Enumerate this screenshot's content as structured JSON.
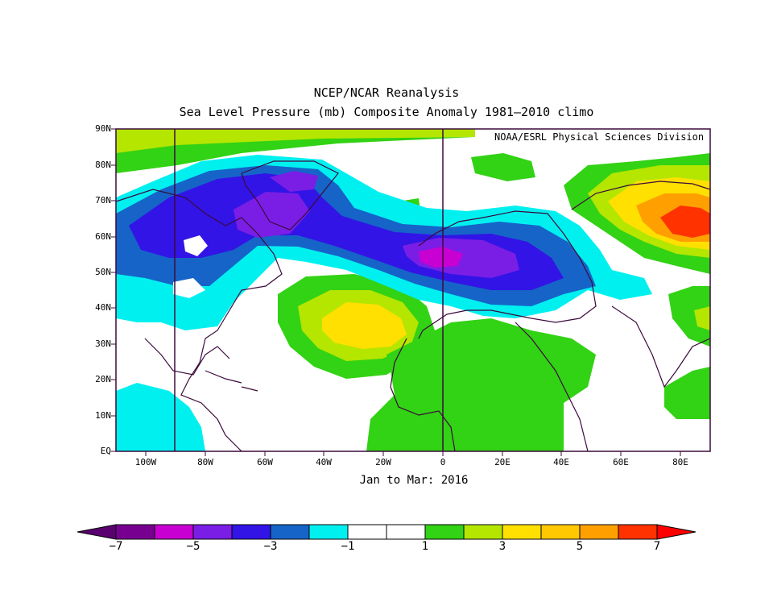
{
  "title": "NCEP/NCAR Reanalysis",
  "subtitle": "Sea Level Pressure (mb) Composite Anomaly 1981–2010 climo",
  "credit": "NOAA/ESRL Physical Sciences Division",
  "period": "Jan to Mar: 2016",
  "lat_labels": [
    "90N",
    "80N",
    "70N",
    "60N",
    "50N",
    "40N",
    "30N",
    "20N",
    "10N",
    "EQ"
  ],
  "lon_labels": [
    "100W",
    "80W",
    "60W",
    "40W",
    "20W",
    "0",
    "20E",
    "40E",
    "60E",
    "80E"
  ],
  "colorbar": {
    "labels": [
      "−7",
      "−5",
      "−3",
      "−1",
      "1",
      "3",
      "5",
      "7"
    ],
    "colors": [
      "#5a0070",
      "#780090",
      "#c800d2",
      "#7a1ee6",
      "#3214e6",
      "#1664c8",
      "#00f0f0",
      "#ffffff",
      "#ffffff",
      "#32d214",
      "#b4e600",
      "#ffe000",
      "#ffc800",
      "#ffa000",
      "#ff3200",
      "#ff0000"
    ]
  },
  "legend_colors": {
    "cyan": "#00f0f0",
    "blue": "#1664c8",
    "indigo": "#3214e6",
    "violet": "#7a1ee6",
    "magenta": "#c800d2",
    "green": "#32d214",
    "yellowgreen": "#b4e600",
    "yellow": "#ffe000",
    "orange": "#ffa000",
    "red": "#ff3200"
  }
}
